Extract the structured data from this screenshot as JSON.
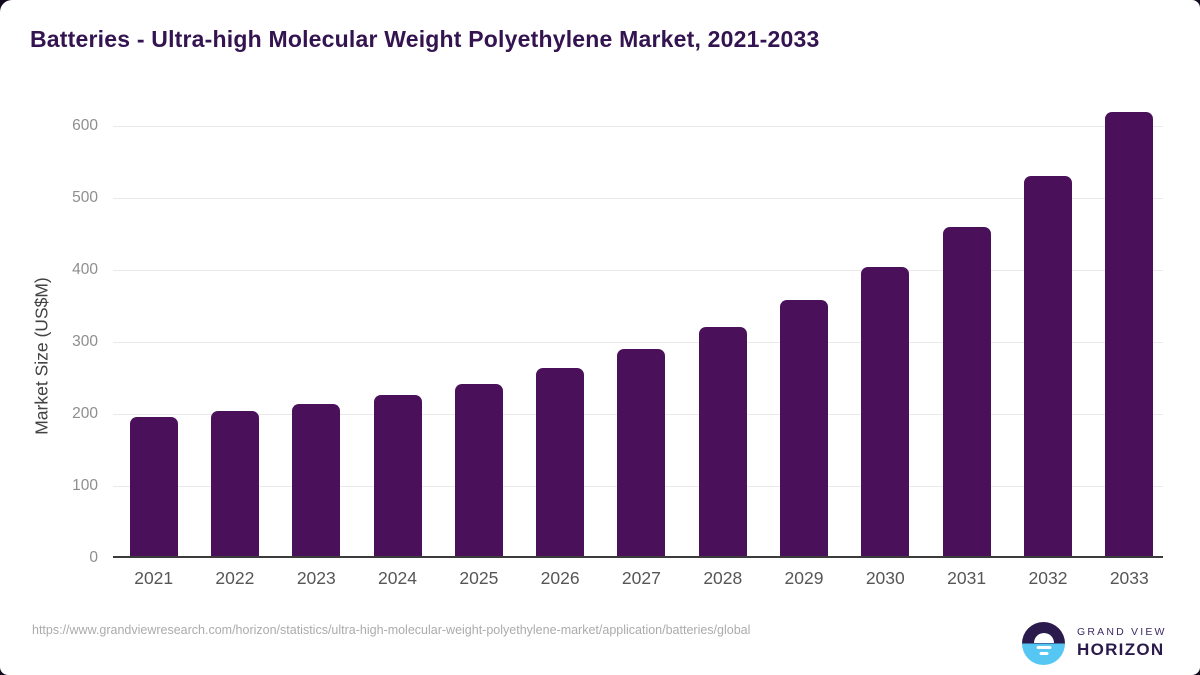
{
  "page": {
    "title": "Batteries - Ultra-high Molecular Weight Polyethylene Market, 2021-2033",
    "source_url": "https://www.grandviewresearch.com/horizon/statistics/ultra-high-molecular-weight-polyethylene-market/application/batteries/global"
  },
  "chart_data": {
    "type": "bar",
    "title": "Batteries - Ultra-high Molecular Weight Polyethylene Market, 2021-2033",
    "xlabel": "",
    "ylabel": "Market Size (US$M)",
    "categories": [
      "2021",
      "2022",
      "2023",
      "2024",
      "2025",
      "2026",
      "2027",
      "2028",
      "2029",
      "2030",
      "2031",
      "2032",
      "2033"
    ],
    "values": [
      196,
      204,
      214,
      226,
      242,
      263,
      290,
      320,
      358,
      404,
      460,
      531,
      620
    ],
    "yticks": [
      0,
      100,
      200,
      300,
      400,
      500,
      600
    ],
    "ylim": [
      0,
      640
    ],
    "grid": true,
    "legend": false,
    "bar_color": "#4a115a",
    "title_color": "#331450"
  },
  "branding": {
    "name_top": "GRAND VIEW",
    "name_bottom": "HORIZON",
    "logo_icon": "horizon-sun-icon",
    "logo_purple": "#2b1b4d",
    "logo_blue": "#56c6f2"
  }
}
